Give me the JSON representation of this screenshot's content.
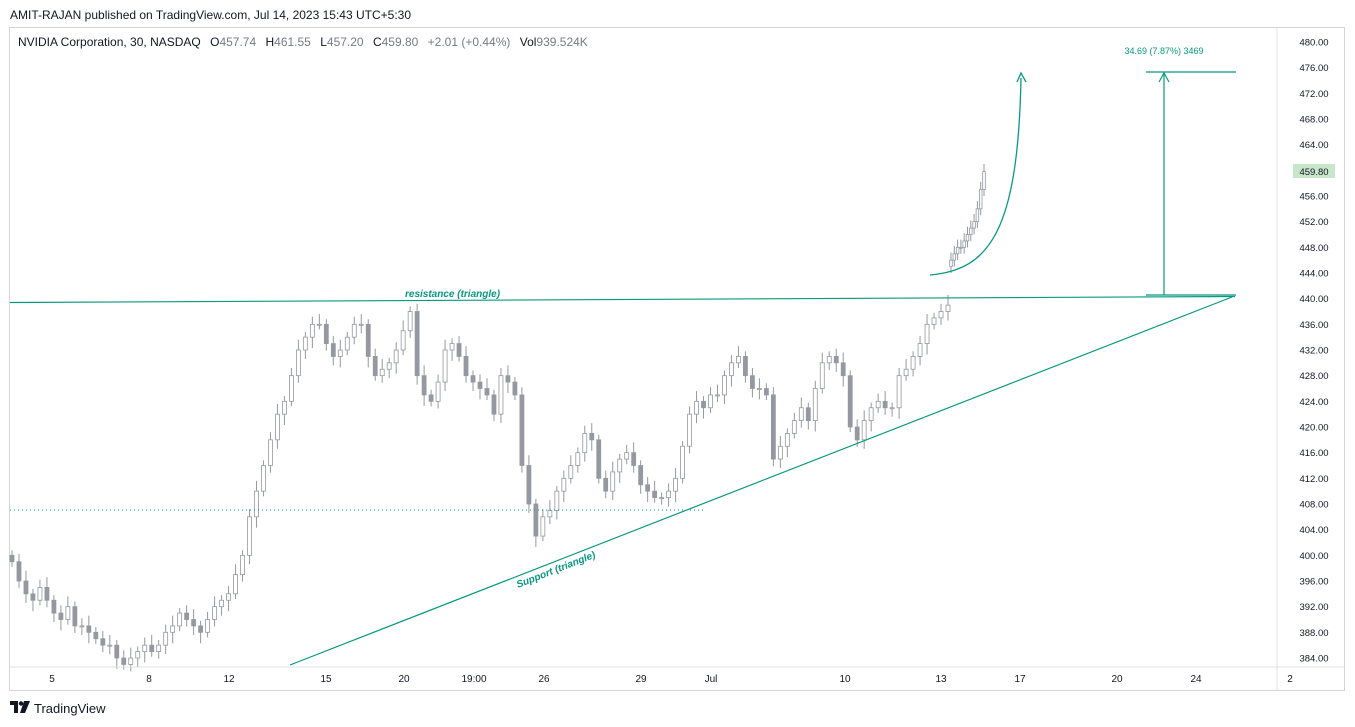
{
  "header": {
    "published": "AMIT-RAJAN published on TradingView.com, Jul 14, 2023 15:43 UTC+5:30"
  },
  "legend": {
    "symbol": "NVIDIA Corporation, 30, NASDAQ",
    "o_label": "O",
    "o_value": "457.74",
    "h_label": "H",
    "h_value": "461.55",
    "l_label": "L",
    "l_value": "457.20",
    "c_label": "C",
    "c_value": "459.80",
    "change": "+2.01 (+0.44%)",
    "vol_label": "Vol",
    "vol_value": "939.524K"
  },
  "footer": {
    "brand": "TradingView",
    "logo_icon": "tradingview-logo-icon"
  },
  "colors": {
    "candle": "#9598a1",
    "drawing": "#089981",
    "last_price_bg": "#c8e6c9",
    "grid": "#f0f3fa"
  },
  "chart_data": {
    "type": "candlestick",
    "timeframe": "30",
    "ylim": [
      381.5,
      482.5
    ],
    "y_ticks": [
      480,
      476,
      472,
      468,
      464,
      460,
      456,
      452,
      448,
      444,
      440,
      436,
      432,
      428,
      424,
      420,
      416,
      412,
      408,
      404,
      400,
      396,
      392,
      388,
      384
    ],
    "y_tick_labels": [
      "480.00",
      "476.00",
      "472.00",
      "468.00",
      "464.00",
      "460.00",
      "456.00",
      "452.00",
      "448.00",
      "444.00",
      "440.00",
      "436.00",
      "432.00",
      "428.00",
      "424.00",
      "420.00",
      "416.00",
      "412.00",
      "408.00",
      "404.00",
      "400.00",
      "396.00",
      "392.00",
      "388.00",
      "384.00"
    ],
    "x_tick_labels": [
      "5",
      "8",
      "12",
      "15",
      "20",
      "19:00",
      "26",
      "29",
      "Jul",
      "10",
      "13",
      "17",
      "20",
      "24",
      "2"
    ],
    "last_price": 459.8,
    "last_price_label": "459.80",
    "prev_close": 407.0,
    "closes": [
      399,
      396,
      394,
      393,
      395,
      393,
      391,
      390,
      392,
      389,
      389,
      388,
      387,
      386,
      386,
      384,
      383,
      384,
      385,
      386,
      385,
      386,
      388,
      389,
      391,
      390,
      389,
      388,
      390,
      392,
      393,
      394,
      397,
      400,
      406,
      410,
      414,
      418,
      422,
      424,
      428,
      432,
      434,
      436,
      436,
      433,
      431,
      432,
      434,
      436,
      436,
      431,
      428,
      429,
      430,
      432,
      435,
      438,
      428,
      425,
      424,
      427,
      432,
      433,
      431,
      428,
      427,
      426,
      425,
      422,
      428,
      427,
      425,
      414,
      408,
      403,
      406,
      407,
      410,
      412,
      414,
      416,
      419,
      418,
      412,
      410,
      413,
      415,
      416,
      414,
      411,
      410,
      409,
      409,
      410,
      412,
      417,
      422,
      424,
      423,
      425,
      425,
      428,
      430,
      431,
      428,
      426,
      426,
      425,
      415,
      417,
      419,
      421,
      423,
      421,
      426,
      430,
      431,
      430,
      428,
      420,
      418,
      421,
      423,
      424,
      423,
      423,
      428,
      429,
      431,
      433,
      436,
      437,
      438,
      439
    ],
    "series": [],
    "drawings": {
      "resistance_label": "resistance (triangle)",
      "support_label": "Support (triangle)",
      "measure_label": "34.69 (7.87%) 3469",
      "resistance_value": 440.0,
      "target_value": 475.5,
      "support_start_value": 382.0,
      "support_end_value": 440.5
    },
    "grid": false,
    "legend_position": "top-left"
  }
}
